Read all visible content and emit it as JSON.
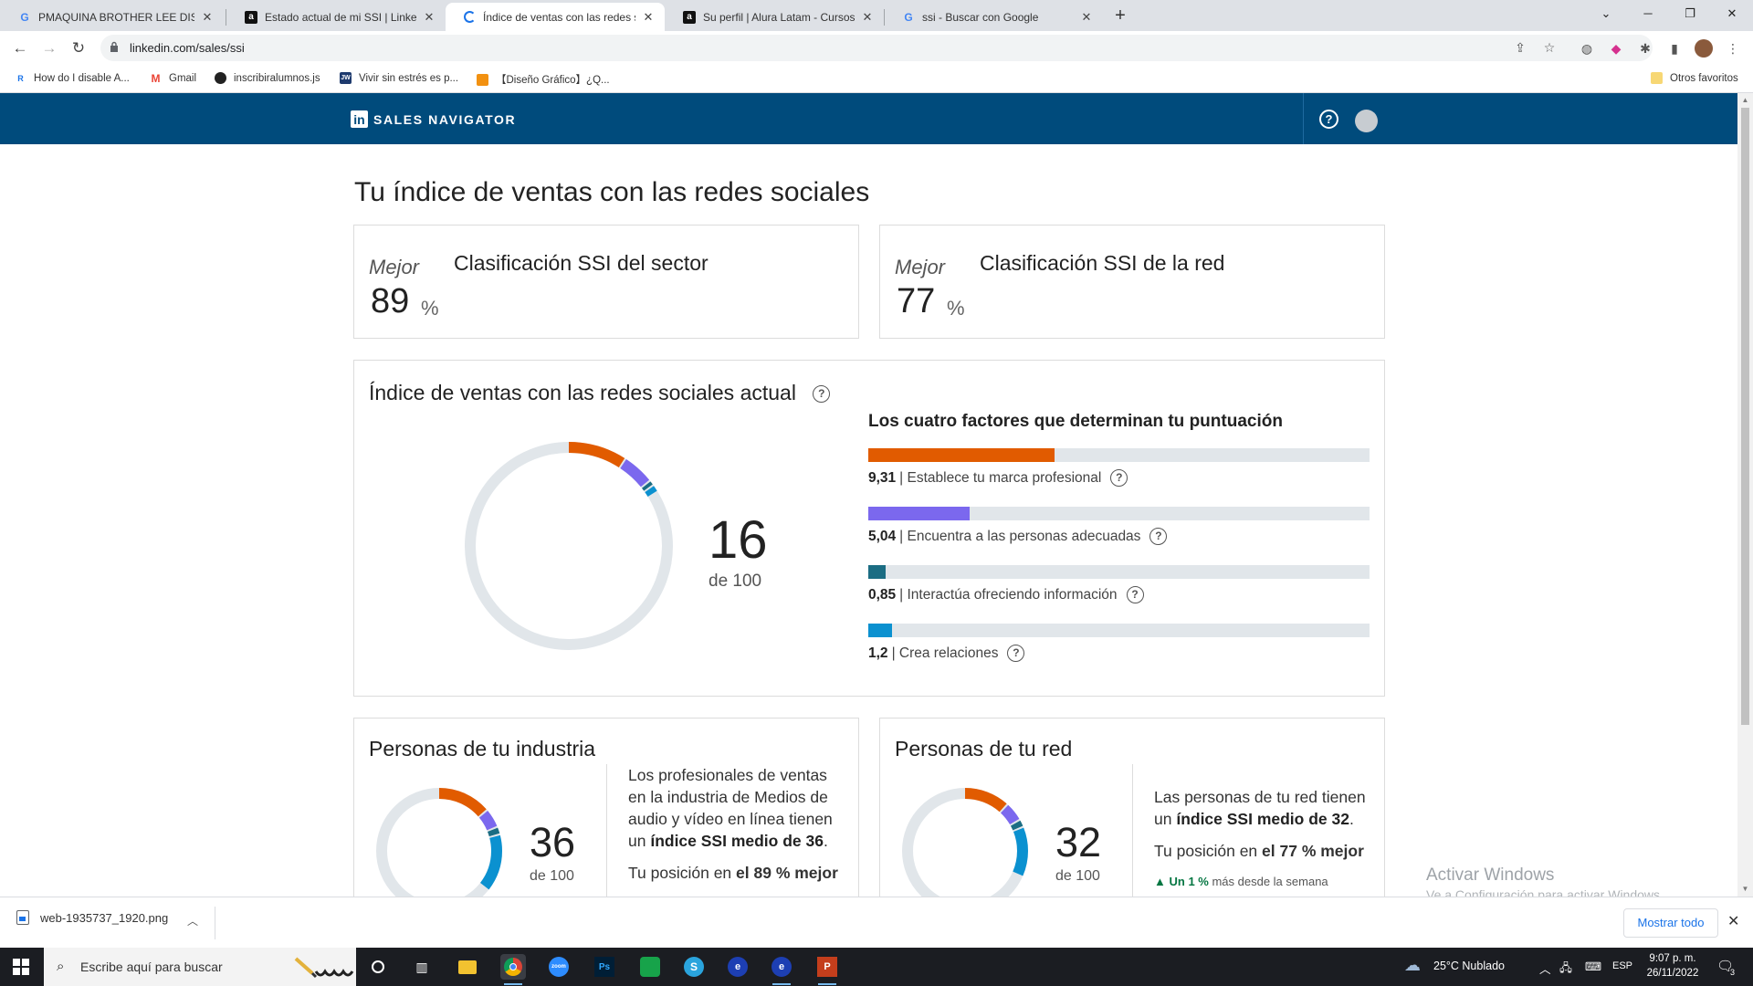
{
  "browser": {
    "tabs": [
      {
        "title": "PMAQUINA BROTHER LEE DISEÑ",
        "icon": "google-icon",
        "active": false
      },
      {
        "title": "Estado actual de mi SSI | LinkedIn",
        "icon": "a-icon",
        "active": false
      },
      {
        "title": "Índice de ventas con las redes so",
        "icon": "loading-icon",
        "active": true
      },
      {
        "title": "Su perfil | Alura Latam - Cursos o",
        "icon": "a-icon",
        "active": false
      },
      {
        "title": "ssi - Buscar con Google",
        "icon": "google-icon",
        "active": false
      }
    ],
    "url": "linkedin.com/sales/ssi",
    "bookmarks": [
      {
        "label": "How do I disable A...",
        "icon": "r-icon"
      },
      {
        "label": "Gmail",
        "icon": "gmail-icon"
      },
      {
        "label": "inscribiralumnos.js",
        "icon": "github-icon"
      },
      {
        "label": "Vivir sin estrés es p...",
        "icon": "jw-icon"
      },
      {
        "label": "【Diseño Gráfico】¿Q...",
        "icon": "folder-orange-icon"
      }
    ],
    "other_bookmarks": "Otros favoritos"
  },
  "header": {
    "logo_letters": "in",
    "brand": "SALES NAVIGATOR",
    "help": "?"
  },
  "page": {
    "title": "Tu índice de ventas con las redes sociales",
    "sector_rank": {
      "label": "Mejor",
      "value": "89",
      "unit": "%",
      "heading": "Clasificación SSI del sector"
    },
    "network_rank": {
      "label": "Mejor",
      "value": "77",
      "unit": "%",
      "heading": "Clasificación SSI de la red"
    },
    "current": {
      "heading": "Índice de ventas con las redes sociales actual",
      "help": "?",
      "score": "16",
      "of": "de 100",
      "factors_title": "Los cuatro factores que determinan tu puntuación",
      "factors": [
        {
          "value": "9,31",
          "label": "| Establece tu marca profesional",
          "fraction": 0.3724,
          "color": "#e15b00"
        },
        {
          "value": "5,04",
          "label": "| Encuentra a las personas adecuadas",
          "fraction": 0.2016,
          "color": "#7b68ee"
        },
        {
          "value": "0,85",
          "label": "| Interactúa ofreciendo información",
          "fraction": 0.034,
          "color": "#1b6d83"
        },
        {
          "value": "1,2",
          "label": "| Crea relaciones",
          "fraction": 0.048,
          "color": "#0b91d0"
        }
      ]
    },
    "industry": {
      "heading": "Personas de tu industria",
      "score": "36",
      "of": "de 100",
      "segments": [
        0.14,
        0.05,
        0.02,
        0.15
      ],
      "desc_pre": "Los profesionales de ventas en la industria de Medios de audio y vídeo en línea tienen un ",
      "desc_bold": "índice SSI medio de 36",
      "desc_post": ".",
      "pos_pre": "Tu posición en ",
      "pos_bold": "el 89 % mejor"
    },
    "network": {
      "heading": "Personas de tu red",
      "score": "32",
      "of": "de 100",
      "segments": [
        0.12,
        0.05,
        0.02,
        0.13
      ],
      "desc_pre": "Las personas de tu red tienen un ",
      "desc_bold": "índice SSI medio de 32",
      "desc_post": ".",
      "pos_pre": "Tu posición en ",
      "pos_bold": "el 77 % mejor",
      "trend_bold": "Un 1 %",
      "trend_rest": "más desde la semana"
    },
    "watermark_title": "Activar Windows",
    "watermark_sub": "Ve a Configuración para activar Windows."
  },
  "downloads": {
    "file": "web-1935737_1920.png",
    "show_all": "Mostrar todo"
  },
  "taskbar": {
    "search_placeholder": "Escribe aquí para buscar",
    "weather": "25°C  Nublado",
    "lang": "ESP",
    "time": "9:07 p. m.",
    "date": "26/11/2022",
    "notifications": "3"
  },
  "colors": {
    "linkedin_header": "#004b7c",
    "brand_orange": "#e15b00",
    "brand_purple": "#7b68ee",
    "brand_teal": "#1b6d83",
    "brand_blue": "#0b91d0",
    "ring_track": "#e1e6ea"
  }
}
